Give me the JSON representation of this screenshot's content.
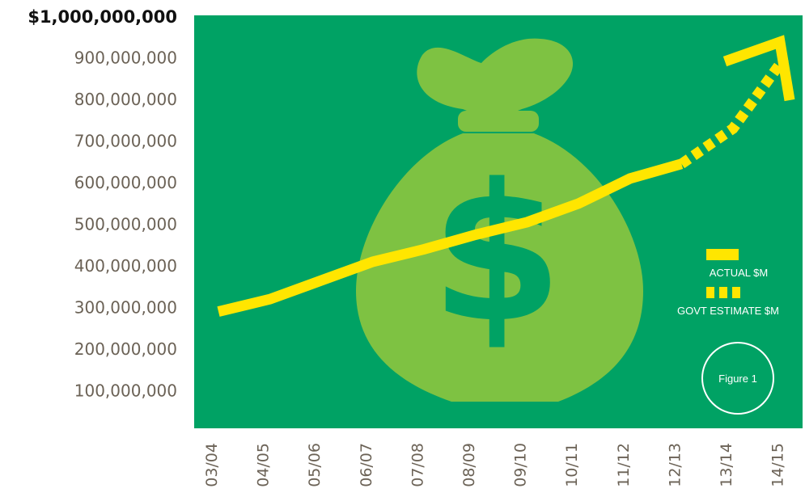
{
  "chart_data": {
    "type": "line",
    "categories": [
      "03/04",
      "04/05",
      "05/06",
      "06/07",
      "07/08",
      "08/09",
      "09/10",
      "10/11",
      "11/12",
      "12/13",
      "13/14",
      "14/15"
    ],
    "series": [
      {
        "name": "ACTUAL $M",
        "style": "solid",
        "values": [
          290000000,
          320000000,
          365000000,
          410000000,
          440000000,
          475000000,
          505000000,
          550000000,
          610000000,
          645000000,
          null,
          null
        ]
      },
      {
        "name": "GOVT ESTIMATE $M",
        "style": "dotted",
        "values": [
          null,
          null,
          null,
          null,
          null,
          null,
          null,
          null,
          null,
          645000000,
          730000000,
          900000000
        ]
      }
    ],
    "ylim": [
      0,
      1000000000
    ],
    "yticks": [
      "100,000,000",
      "200,000,000",
      "300,000,000",
      "400,000,000",
      "500,000,000",
      "600,000,000",
      "700,000,000",
      "800,000,000",
      "900,000,000"
    ],
    "ytop_label": "$1,000,000,000",
    "legend_position": "right",
    "grid": false,
    "figure_label": "Figure 1",
    "colors": {
      "plot_bg": "#00a264",
      "bag": "#7ec242",
      "line": "#ffe600",
      "tick_text": "#6b6256",
      "top_label": "#111111"
    }
  }
}
